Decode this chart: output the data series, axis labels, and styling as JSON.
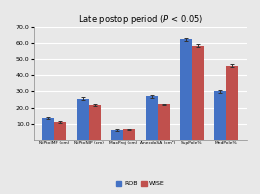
{
  "title": "Late postop period ($\\it{P}$ < 0.05)",
  "categories": [
    "NiPtoIMF (cm)",
    "NiPtoNIP (cm)",
    "MaxProj (cm)",
    "AnecdoSA (cm²)",
    "SupPole%",
    "MedPole%"
  ],
  "rob_values": [
    13.5,
    25.5,
    6.0,
    27.0,
    62.5,
    30.0
  ],
  "wise_values": [
    11.0,
    21.5,
    6.5,
    22.0,
    58.5,
    46.0
  ],
  "rob_errors": [
    0.5,
    0.8,
    0.4,
    0.8,
    0.8,
    1.2
  ],
  "wise_errors": [
    0.4,
    0.7,
    0.4,
    0.5,
    0.8,
    0.8
  ],
  "rob_color": "#4472C4",
  "wise_color": "#C0504D",
  "ylim": [
    0,
    70
  ],
  "yticks": [
    10.0,
    20.0,
    30.0,
    40.0,
    50.0,
    60.0,
    70.0
  ],
  "bar_width": 0.35,
  "legend_labels": [
    "ROB",
    "WISE"
  ],
  "background_color": "#E8E8E8",
  "plot_bg_color": "#E8E8E8",
  "grid_color": "#FFFFFF"
}
